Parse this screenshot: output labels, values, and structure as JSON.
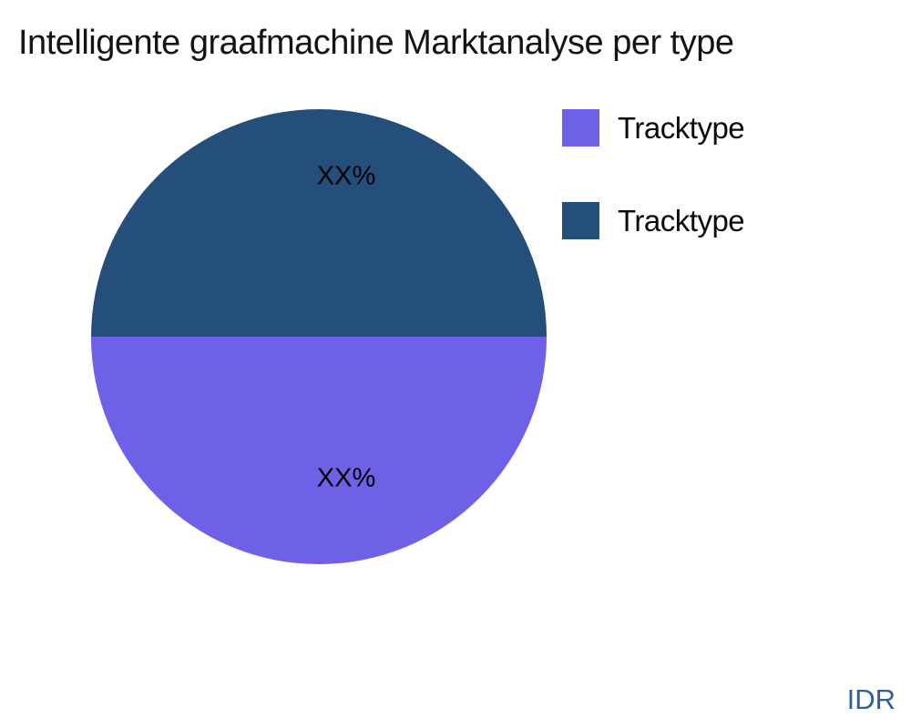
{
  "chart_data": {
    "type": "pie",
    "title": "Intelligente graafmachine Marktanalyse per type",
    "slices": [
      {
        "label": "Tracktype",
        "color": "#6E61E8",
        "value": 50,
        "value_label": "XX%",
        "position": "bottom"
      },
      {
        "label": "Tracktype",
        "color": "#244F7A",
        "value": 50,
        "value_label": "XX%",
        "position": "top"
      }
    ],
    "legend_position": "top-right",
    "start_split": "horizontal",
    "background": "#ffffff"
  },
  "footer": {
    "text": "IDR",
    "color": "#2E6095"
  }
}
